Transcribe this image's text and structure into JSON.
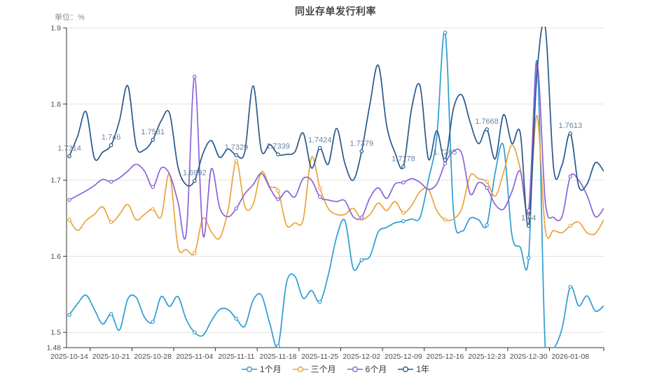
{
  "title": "同业存单发行利率",
  "unit_label": "单位：%",
  "chart_data": {
    "type": "line",
    "title": "同业存单发行利率",
    "ylabel": "单位：%",
    "xlabel": "",
    "ylim": [
      1.48,
      1.9
    ],
    "y_ticks": [
      "1.9",
      "1.8",
      "1.7",
      "1.6",
      "1.5",
      "1.48"
    ],
    "y_tick_values": [
      1.9,
      1.8,
      1.7,
      1.6,
      1.5,
      1.48
    ],
    "x_tick_labels": [
      "2025-10-14",
      "2025-10-21",
      "2025-10-28",
      "2025-11-04",
      "2025-11-11",
      "2025-11-18",
      "2025-11-25",
      "2025-12-02",
      "2025-12-09",
      "2025-12-16",
      "2025-12-23",
      "2025-12-30",
      "2026-01-08"
    ],
    "points_per_tick": 5,
    "smooth": true,
    "grid": true,
    "legend_position": "bottom",
    "background": "#ffffff",
    "grid_color": "#e2e2e2",
    "axis_color": "#333333",
    "tick_label_color": "#4d4d4d",
    "value_label_color": "#6c83a6",
    "series": [
      {
        "name": "1个月",
        "color": "#2e9cd3",
        "values": [
          1.523,
          1.538,
          1.549,
          1.53,
          1.511,
          1.524,
          1.503,
          1.544,
          1.546,
          1.52,
          1.514,
          1.547,
          1.534,
          1.547,
          1.517,
          1.5,
          1.496,
          1.515,
          1.53,
          1.53,
          1.518,
          1.508,
          1.542,
          1.549,
          1.512,
          1.482,
          1.565,
          1.574,
          1.545,
          1.555,
          1.54,
          1.575,
          1.625,
          1.647,
          1.584,
          1.595,
          1.6,
          1.632,
          1.638,
          1.644,
          1.646,
          1.649,
          1.651,
          1.7,
          1.757,
          1.894,
          1.66,
          1.633,
          1.65,
          1.648,
          1.641,
          1.71,
          1.745,
          1.628,
          1.612,
          1.598,
          1.856,
          1.479,
          1.479,
          1.505,
          1.56,
          1.535,
          1.548,
          1.528,
          1.535
        ]
      },
      {
        "name": "三个月",
        "color": "#e9a43d",
        "values": [
          1.648,
          1.634,
          1.647,
          1.655,
          1.665,
          1.645,
          1.655,
          1.668,
          1.648,
          1.655,
          1.662,
          1.652,
          1.708,
          1.613,
          1.609,
          1.604,
          1.65,
          1.632,
          1.624,
          1.66,
          1.725,
          1.666,
          1.668,
          1.711,
          1.692,
          1.686,
          1.641,
          1.644,
          1.648,
          1.73,
          1.69,
          1.663,
          1.655,
          1.655,
          1.663,
          1.649,
          1.655,
          1.67,
          1.66,
          1.672,
          1.657,
          1.667,
          1.685,
          1.688,
          1.66,
          1.648,
          1.649,
          1.663,
          1.706,
          1.702,
          1.698,
          1.679,
          1.71,
          1.746,
          1.715,
          1.652,
          1.785,
          1.635,
          1.634,
          1.631,
          1.64,
          1.645,
          1.631,
          1.63,
          1.648
        ]
      },
      {
        "name": "6个月",
        "color": "#8b64d8",
        "values": [
          1.674,
          1.68,
          1.686,
          1.693,
          1.701,
          1.698,
          1.703,
          1.712,
          1.721,
          1.712,
          1.691,
          1.716,
          1.708,
          1.672,
          1.63,
          1.836,
          1.628,
          1.715,
          1.664,
          1.652,
          1.663,
          1.682,
          1.694,
          1.709,
          1.69,
          1.675,
          1.686,
          1.678,
          1.702,
          1.7,
          1.678,
          1.674,
          1.672,
          1.673,
          1.652,
          1.651,
          1.677,
          1.69,
          1.676,
          1.695,
          1.697,
          1.702,
          1.697,
          1.688,
          1.695,
          1.722,
          1.738,
          1.735,
          1.682,
          1.697,
          1.69,
          1.668,
          1.662,
          1.685,
          1.712,
          1.66,
          1.853,
          1.672,
          1.651,
          1.652,
          1.705,
          1.7,
          1.68,
          1.652,
          1.663
        ]
      },
      {
        "name": "1年",
        "color": "#27598c",
        "values": [
          1.7314,
          1.758,
          1.79,
          1.729,
          1.737,
          1.746,
          1.778,
          1.824,
          1.745,
          1.74,
          1.7531,
          1.778,
          1.788,
          1.718,
          1.694,
          1.6992,
          1.735,
          1.752,
          1.73,
          1.741,
          1.7329,
          1.737,
          1.824,
          1.739,
          1.747,
          1.7339,
          1.734,
          1.737,
          1.762,
          1.716,
          1.7424,
          1.721,
          1.768,
          1.722,
          1.7,
          1.7379,
          1.8,
          1.851,
          1.772,
          1.736,
          1.7178,
          1.795,
          1.824,
          1.728,
          1.765,
          1.7265,
          1.794,
          1.812,
          1.776,
          1.748,
          1.7668,
          1.728,
          1.786,
          1.748,
          1.762,
          1.64,
          1.84,
          1.901,
          1.715,
          1.72,
          1.7613,
          1.692,
          1.695,
          1.723,
          1.712
        ],
        "point_labels": [
          "1.7314",
          "1.746",
          "1.7531",
          "1.6992",
          "1.7329",
          "1.7339",
          "1.7424",
          "1.7379",
          "1.7178",
          "1.7265",
          "1.7668",
          "1.64",
          "1.7613"
        ]
      }
    ]
  }
}
